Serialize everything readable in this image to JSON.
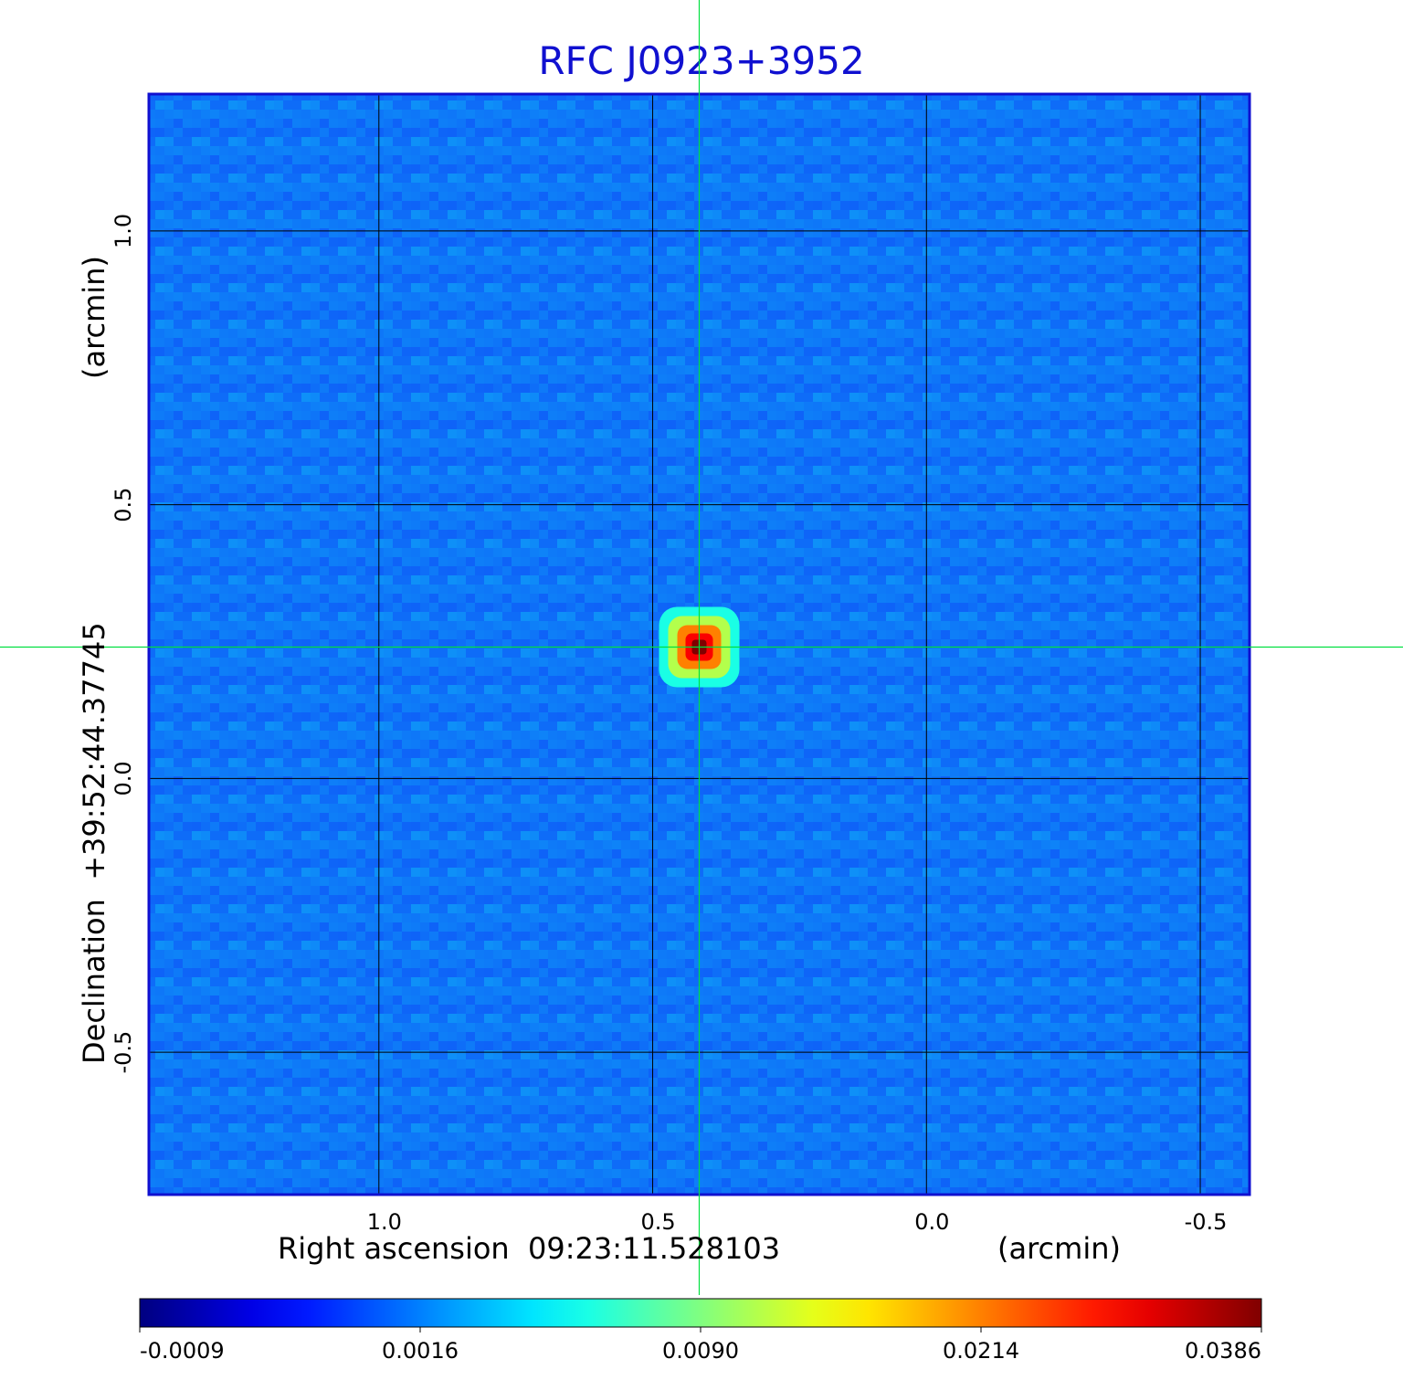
{
  "chart_data": {
    "type": "heatmap",
    "title": "RFC J0923+3952",
    "xlabel": "Right ascension  09:23:11.528103",
    "x_unit": "(arcmin)",
    "ylabel": "Declination  +39:52:44.37745",
    "y_unit": "(arcmin)",
    "x_ticks": [
      1.0,
      0.5,
      0.0,
      -0.5
    ],
    "x_tick_labels": [
      "1.0",
      "0.5",
      "0.0",
      "-0.5"
    ],
    "y_ticks": [
      1.0,
      0.5,
      0.0,
      -0.5
    ],
    "y_tick_labels": [
      "1.0",
      "0.5",
      "0.0",
      "-0.5"
    ],
    "xlim": [
      1.42,
      -0.59
    ],
    "ylim": [
      -0.76,
      1.25
    ],
    "grid": true,
    "crosshair": {
      "x": 0.415,
      "y": 0.24
    },
    "source": {
      "x": 0.415,
      "y": 0.24,
      "peak": 0.0386
    },
    "colorbar": {
      "tick_labels": [
        "-0.0009",
        "0.0016",
        "0.0090",
        "0.0214",
        "0.0386"
      ],
      "min": -0.0009,
      "max": 0.0386,
      "colormap": "jet",
      "placement": "bottom"
    },
    "colors": {
      "frame": "#1010d0",
      "grid": "#000000",
      "crosshair": "#00e040",
      "title": "#1010d0",
      "background_field": "#1f5af0"
    }
  }
}
